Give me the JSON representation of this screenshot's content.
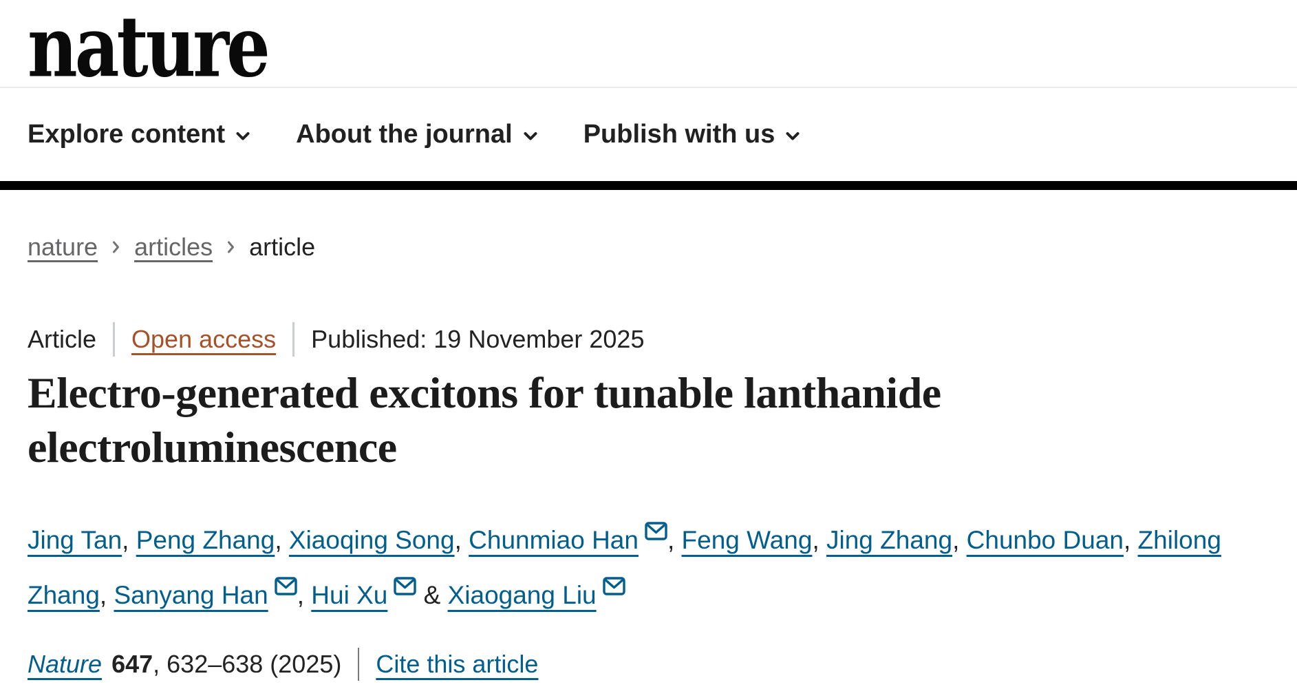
{
  "header": {
    "logo_text": "nature"
  },
  "nav": {
    "items": [
      {
        "label": "Explore content"
      },
      {
        "label": "About the journal"
      },
      {
        "label": "Publish with us"
      }
    ]
  },
  "breadcrumb": {
    "items": [
      {
        "label": "nature",
        "current": false
      },
      {
        "label": "articles",
        "current": false
      },
      {
        "label": "article",
        "current": true
      }
    ]
  },
  "meta": {
    "article_type": "Article",
    "access_label": "Open access",
    "published": "Published: 19 November 2025"
  },
  "title": {
    "full": "Electro-generated excitons for tunable lanthanide electroluminescence",
    "lines": [
      "Electro-generated excitons for tunable lanthanide",
      "electroluminescence"
    ]
  },
  "authors": {
    "separator": ", ",
    "last_separator": " & ",
    "list": [
      {
        "name": "Jing Tan",
        "email": false
      },
      {
        "name": "Peng Zhang",
        "email": false
      },
      {
        "name": "Xiaoqing Song",
        "email": false
      },
      {
        "name": "Chunmiao Han",
        "email": true
      },
      {
        "name": "Feng Wang",
        "email": false
      },
      {
        "name": "Jing Zhang",
        "email": false
      },
      {
        "name": "Chunbo Duan",
        "email": false
      },
      {
        "name": "Zhilong Zhang",
        "email": false
      },
      {
        "name": "Sanyang Han",
        "email": true
      },
      {
        "name": "Hui Xu",
        "email": true
      },
      {
        "name": "Xiaogang Liu",
        "email": true
      }
    ]
  },
  "citation": {
    "journal": "Nature",
    "volume": "647",
    "pages": ", 632–638 (2025)",
    "cite_link": "Cite this article"
  },
  "colors": {
    "text": "#222222",
    "link_teal": "#025e8d",
    "open_access": "#a5522a",
    "muted_link": "#666668",
    "black_bar": "#000000"
  }
}
